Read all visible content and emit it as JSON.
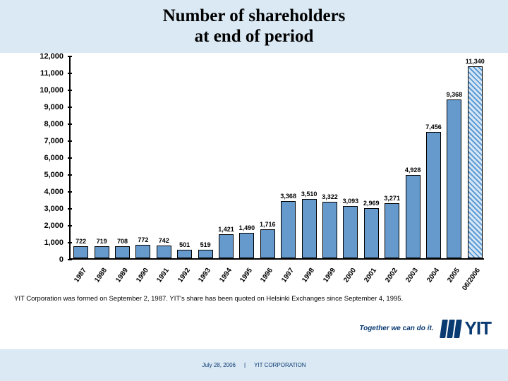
{
  "title": "Number of shareholders\nat end of period",
  "chart": {
    "type": "bar",
    "categories": [
      "1987",
      "1988",
      "1989",
      "1990",
      "1991",
      "1992",
      "1993",
      "1994",
      "1995",
      "1996",
      "1997",
      "1998",
      "1999",
      "2000",
      "2001",
      "2002",
      "2003",
      "2004",
      "2005",
      "06/2006"
    ],
    "values": [
      722,
      719,
      708,
      772,
      742,
      501,
      519,
      1421,
      1490,
      1716,
      3368,
      3510,
      3322,
      3093,
      2969,
      3271,
      4928,
      7456,
      9368,
      11340
    ],
    "ylim": [
      0,
      12000
    ],
    "ytick_step": 1000,
    "bar_color": "#6699cc",
    "last_bar_hatched": true,
    "bar_border_color": "#000000",
    "axis_color": "#000000",
    "plot_background": "#ffffff",
    "axis_font_size": 11,
    "bar_label_font_size": 9,
    "x_label_font_size": 10,
    "x_label_rotation_deg": -55,
    "bar_width_ratio": 0.72
  },
  "note": "YIT Corporation was formed on September 2, 1987. YIT's share has been quoted on Helsinki Exchanges since September 4, 1995.",
  "brand": {
    "tagline": "Together we can do it.",
    "logo_text": "YIT",
    "brand_color": "#0a3a72"
  },
  "footer": {
    "date": "July 28, 2006",
    "org": "YIT CORPORATION"
  },
  "colors": {
    "title_band": "#dae9f3",
    "bottom_band": "#dae9f3",
    "page_bg": "#ffffff"
  }
}
